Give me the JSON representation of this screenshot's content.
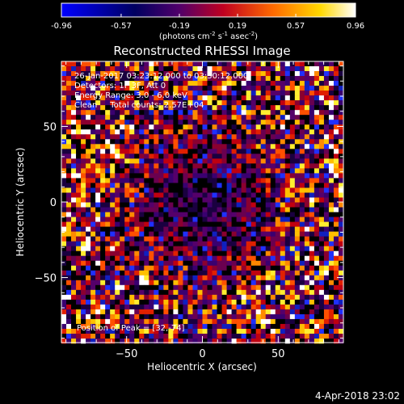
{
  "chart_data": {
    "type": "heatmap",
    "title": "Reconstructed RHESSI Image",
    "xlabel": "Heliocentric X (arcsec)",
    "ylabel": "Heliocentric Y (arcsec)",
    "xlim": [
      -93,
      93
    ],
    "ylim": [
      -93,
      93
    ],
    "x_ticks": [
      -50,
      0,
      50
    ],
    "y_ticks": [
      -50,
      0,
      50
    ],
    "colorbar": {
      "ticks": [
        "-0.96",
        "-0.57",
        "-0.19",
        "0.19",
        "0.57",
        "0.96"
      ],
      "range": [
        -0.96,
        0.96
      ],
      "unit_line": [
        "(photons cm",
        "-2",
        " s",
        "-1",
        " asec",
        "-2",
        ")"
      ],
      "colormap": [
        "#0000ff",
        "#000000",
        "#ff0000",
        "#ffff00",
        "#ffffff"
      ]
    },
    "annotations": [
      "26-Jan-2017 03:23:12.000 to 03:30:12.000",
      "Detectors: 1F 3F, Att 0",
      "Energy Range: 3.0 - 6.0 keV",
      "Clean     Total counts: 2.57E+04"
    ],
    "peak_label": "Position of Peak = [32,-74]",
    "peak_position": [
      32,
      -74
    ],
    "timestamp": "4-Apr-2018 23:02"
  }
}
